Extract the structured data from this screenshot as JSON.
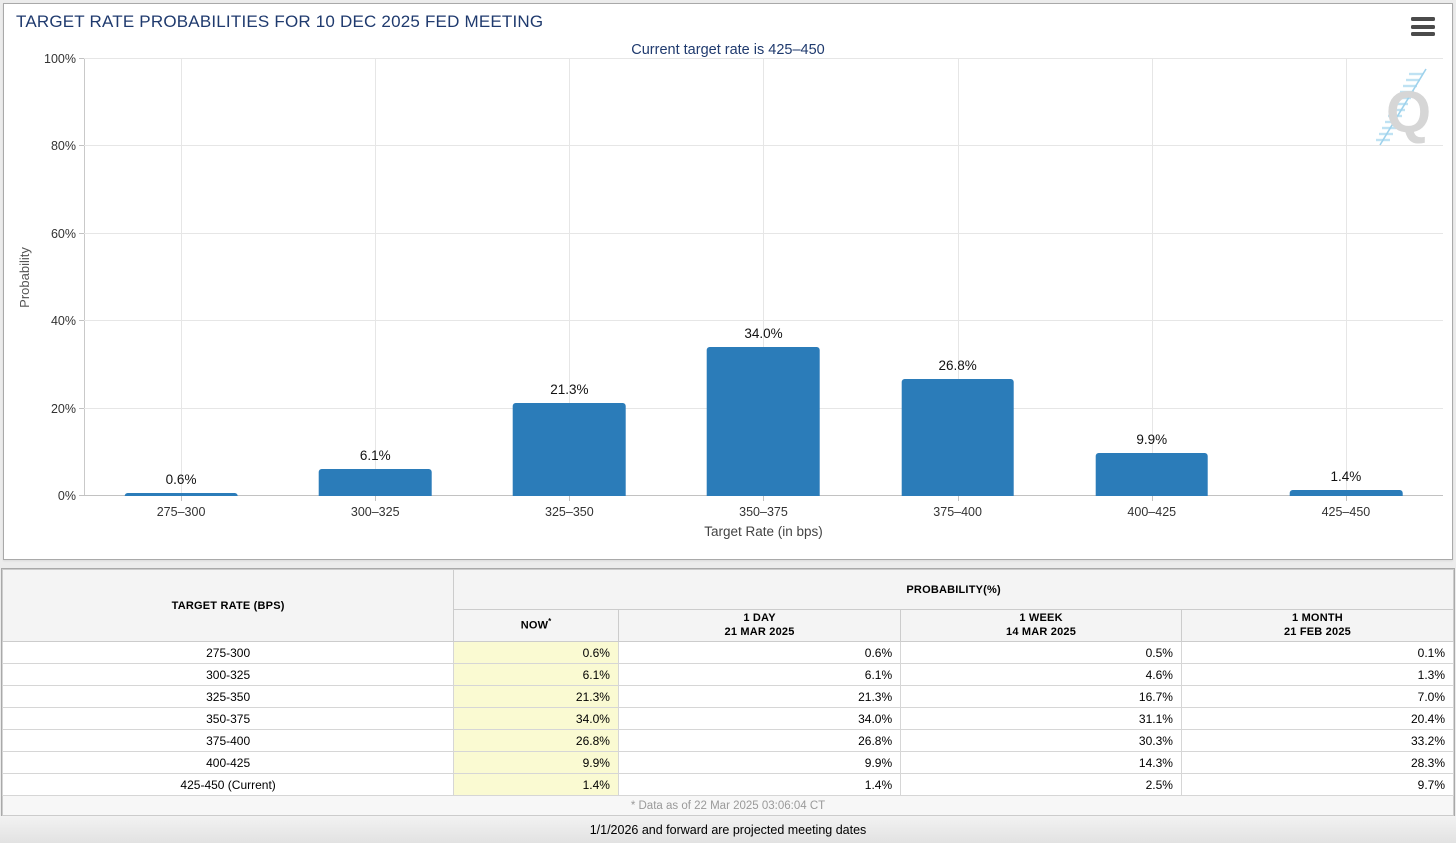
{
  "chart_panel": {
    "title": "TARGET RATE PROBABILITIES FOR 10 DEC 2025 FED MEETING",
    "menu_icon": "hamburger-menu",
    "watermark_letter": "Q"
  },
  "chart_data": {
    "type": "bar",
    "title": "TARGET RATE PROBABILITIES FOR 10 DEC 2025 FED MEETING",
    "subtitle": "Current target rate is 425–450",
    "categories": [
      "275–300",
      "300–325",
      "325–350",
      "350–375",
      "375–400",
      "400–425",
      "425–450"
    ],
    "values": [
      0.6,
      6.1,
      21.3,
      34.0,
      26.8,
      9.9,
      1.4
    ],
    "value_labels": [
      "0.6%",
      "6.1%",
      "21.3%",
      "34.0%",
      "26.8%",
      "9.9%",
      "1.4%"
    ],
    "xlabel": "Target Rate (in bps)",
    "ylabel": "Probability",
    "ylim": [
      0,
      100
    ],
    "ytick_labels": [
      "0%",
      "20%",
      "40%",
      "60%",
      "80%",
      "100%"
    ],
    "grid": true,
    "legend": null,
    "bar_color": "#2b7cb9"
  },
  "colors": {
    "title_navy": "#1f3a6e",
    "bar_blue": "#2b7cb9",
    "now_highlight": "#FAFAD2"
  },
  "table": {
    "target_rate_header": "TARGET RATE (BPS)",
    "probability_header": "PROBABILITY(%)",
    "now_header": "NOW",
    "now_asterisk": "*",
    "columns": [
      {
        "period": "1 DAY",
        "date": "21 MAR 2025"
      },
      {
        "period": "1 WEEK",
        "date": "14 MAR 2025"
      },
      {
        "period": "1 MONTH",
        "date": "21 FEB 2025"
      }
    ],
    "rows": [
      {
        "rate": "275-300",
        "now": "0.6%",
        "one_day": "0.6%",
        "one_week": "0.5%",
        "one_month": "0.1%"
      },
      {
        "rate": "300-325",
        "now": "6.1%",
        "one_day": "6.1%",
        "one_week": "4.6%",
        "one_month": "1.3%"
      },
      {
        "rate": "325-350",
        "now": "21.3%",
        "one_day": "21.3%",
        "one_week": "16.7%",
        "one_month": "7.0%"
      },
      {
        "rate": "350-375",
        "now": "34.0%",
        "one_day": "34.0%",
        "one_week": "31.1%",
        "one_month": "20.4%"
      },
      {
        "rate": "375-400",
        "now": "26.8%",
        "one_day": "26.8%",
        "one_week": "30.3%",
        "one_month": "33.2%"
      },
      {
        "rate": "400-425",
        "now": "9.9%",
        "one_day": "9.9%",
        "one_week": "14.3%",
        "one_month": "28.3%"
      },
      {
        "rate": "425-450 (Current)",
        "now": "1.4%",
        "one_day": "1.4%",
        "one_week": "2.5%",
        "one_month": "9.7%"
      }
    ],
    "footnote": "* Data as of 22 Mar 2025 03:06:04 CT"
  },
  "footer": {
    "note": "1/1/2026 and forward are projected meeting dates"
  }
}
